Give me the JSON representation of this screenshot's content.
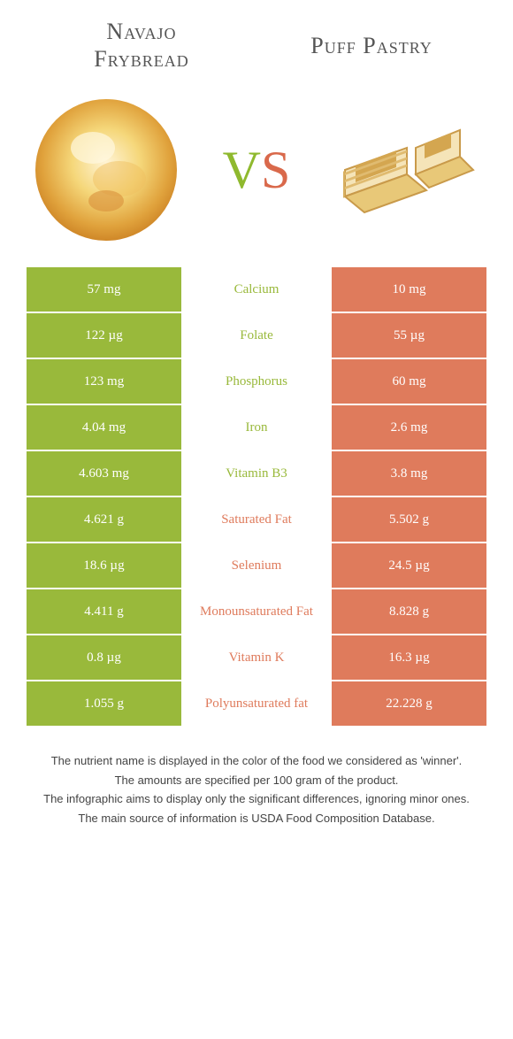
{
  "colors": {
    "green": "#99b93b",
    "orange": "#df7b5c",
    "title_text": "#555555",
    "footer_text": "#444444",
    "background": "#ffffff"
  },
  "typography": {
    "title_fontsize": 26,
    "vs_fontsize": 60,
    "cell_fontsize": 15,
    "footer_fontsize": 13
  },
  "header": {
    "left_title": "Navajo\nFrybread",
    "right_title": "Puff Pastry",
    "vs_v": "V",
    "vs_s": "S"
  },
  "rows": [
    {
      "left": "57 mg",
      "mid": "Calcium",
      "right": "10 mg",
      "winner": "left"
    },
    {
      "left": "122 µg",
      "mid": "Folate",
      "right": "55 µg",
      "winner": "left"
    },
    {
      "left": "123 mg",
      "mid": "Phosphorus",
      "right": "60 mg",
      "winner": "left"
    },
    {
      "left": "4.04 mg",
      "mid": "Iron",
      "right": "2.6 mg",
      "winner": "left"
    },
    {
      "left": "4.603 mg",
      "mid": "Vitamin B3",
      "right": "3.8 mg",
      "winner": "left"
    },
    {
      "left": "4.621 g",
      "mid": "Saturated Fat",
      "right": "5.502 g",
      "winner": "right"
    },
    {
      "left": "18.6 µg",
      "mid": "Selenium",
      "right": "24.5 µg",
      "winner": "right"
    },
    {
      "left": "4.411 g",
      "mid": "Monounsaturated Fat",
      "right": "8.828 g",
      "winner": "right"
    },
    {
      "left": "0.8 µg",
      "mid": "Vitamin K",
      "right": "16.3 µg",
      "winner": "right"
    },
    {
      "left": "1.055 g",
      "mid": "Polyunsaturated fat",
      "right": "22.228 g",
      "winner": "right"
    }
  ],
  "footer": {
    "line1": "The nutrient name is displayed in the color of the food we considered as 'winner'.",
    "line2": "The amounts are specified per 100 gram of the product.",
    "line3": "The infographic aims to display only the significant differences, ignoring minor ones.",
    "line4": "The main source of information is USDA Food Composition Database."
  }
}
